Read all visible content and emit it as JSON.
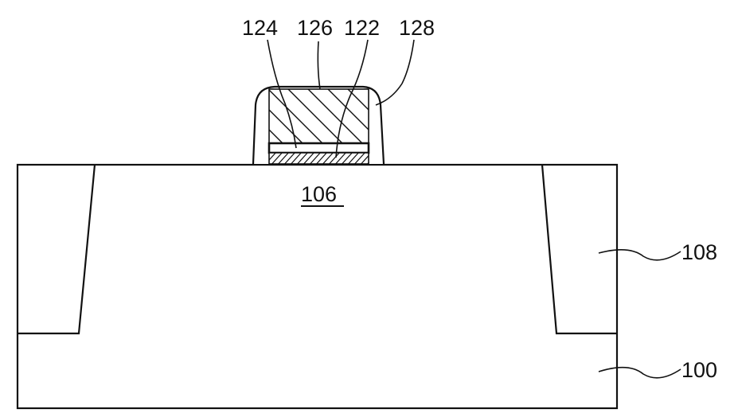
{
  "figure": {
    "labels": {
      "substrate": "100",
      "active_region": "106",
      "isolation": "108",
      "gate_insulating_layer": "122",
      "floating_layer": "124",
      "gate_electrode": "126",
      "spacer": "128"
    }
  }
}
